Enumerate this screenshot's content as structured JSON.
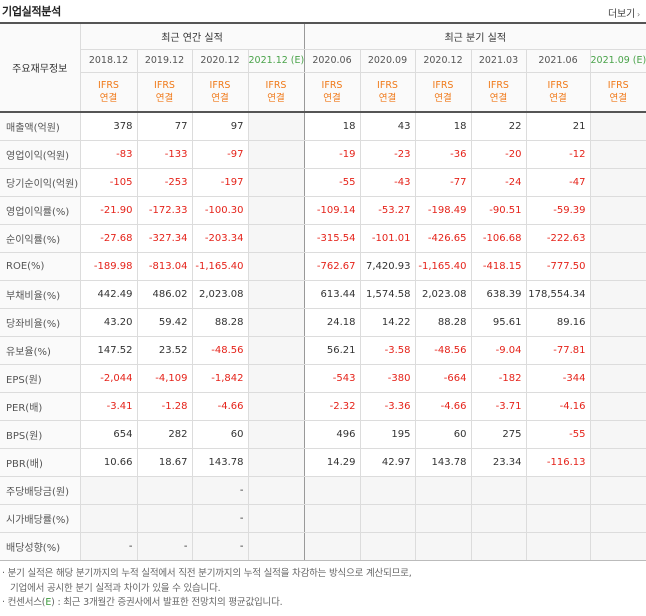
{
  "section": {
    "title": "기업실적분석",
    "more_label": "더보기"
  },
  "header": {
    "row_label": "주요재무정보",
    "annual_group": "최근 연간 실적",
    "quarterly_group": "최근 분기 실적",
    "annual_periods": [
      "2018.12",
      "2019.12",
      "2020.12",
      "2021.12 (E)"
    ],
    "quarterly_periods": [
      "2020.06",
      "2020.09",
      "2020.12",
      "2021.03",
      "2021.06",
      "2021.09 (E)"
    ],
    "ifrs_line1": "IFRS",
    "ifrs_line2": "연결"
  },
  "rows": [
    {
      "label": "매출액(억원)",
      "annual": [
        "378",
        "77",
        "97",
        ""
      ],
      "quarterly": [
        "18",
        "43",
        "18",
        "22",
        "21",
        ""
      ]
    },
    {
      "label": "영업이익(억원)",
      "annual": [
        "-83",
        "-133",
        "-97",
        ""
      ],
      "quarterly": [
        "-19",
        "-23",
        "-36",
        "-20",
        "-12",
        ""
      ]
    },
    {
      "label": "당기순이익(억원)",
      "annual": [
        "-105",
        "-253",
        "-197",
        ""
      ],
      "quarterly": [
        "-55",
        "-43",
        "-77",
        "-24",
        "-47",
        ""
      ]
    },
    {
      "label": "영업이익률(%)",
      "annual": [
        "-21.90",
        "-172.33",
        "-100.30",
        ""
      ],
      "quarterly": [
        "-109.14",
        "-53.27",
        "-198.49",
        "-90.51",
        "-59.39",
        ""
      ]
    },
    {
      "label": "순이익률(%)",
      "annual": [
        "-27.68",
        "-327.34",
        "-203.34",
        ""
      ],
      "quarterly": [
        "-315.54",
        "-101.01",
        "-426.65",
        "-106.68",
        "-222.63",
        ""
      ]
    },
    {
      "label": "ROE(%)",
      "annual": [
        "-189.98",
        "-813.04",
        "-1,165.40",
        ""
      ],
      "quarterly": [
        "-762.67",
        "7,420.93",
        "-1,165.40",
        "-418.15",
        "-777.50",
        ""
      ]
    },
    {
      "label": "부채비율(%)",
      "annual": [
        "442.49",
        "486.02",
        "2,023.08",
        ""
      ],
      "quarterly": [
        "613.44",
        "1,574.58",
        "2,023.08",
        "638.39",
        "178,554.34",
        ""
      ]
    },
    {
      "label": "당좌비율(%)",
      "annual": [
        "43.20",
        "59.42",
        "88.28",
        ""
      ],
      "quarterly": [
        "24.18",
        "14.22",
        "88.28",
        "95.61",
        "89.16",
        ""
      ]
    },
    {
      "label": "유보율(%)",
      "annual": [
        "147.52",
        "23.52",
        "-48.56",
        ""
      ],
      "quarterly": [
        "56.21",
        "-3.58",
        "-48.56",
        "-9.04",
        "-77.81",
        ""
      ]
    },
    {
      "label": "EPS(원)",
      "annual": [
        "-2,044",
        "-4,109",
        "-1,842",
        ""
      ],
      "quarterly": [
        "-543",
        "-380",
        "-664",
        "-182",
        "-344",
        ""
      ]
    },
    {
      "label": "PER(배)",
      "annual": [
        "-3.41",
        "-1.28",
        "-4.66",
        ""
      ],
      "quarterly": [
        "-2.32",
        "-3.36",
        "-4.66",
        "-3.71",
        "-4.16",
        ""
      ]
    },
    {
      "label": "BPS(원)",
      "annual": [
        "654",
        "282",
        "60",
        ""
      ],
      "quarterly": [
        "496",
        "195",
        "60",
        "275",
        "-55",
        ""
      ]
    },
    {
      "label": "PBR(배)",
      "annual": [
        "10.66",
        "18.67",
        "143.78",
        ""
      ],
      "quarterly": [
        "14.29",
        "42.97",
        "143.78",
        "23.34",
        "-116.13",
        ""
      ]
    },
    {
      "label": "주당배당금(원)",
      "annual": [
        "",
        "",
        "-",
        ""
      ],
      "quarterly": [
        "",
        "",
        "",
        "",
        "",
        ""
      ]
    },
    {
      "label": "시가배당률(%)",
      "annual": [
        "",
        "",
        "-",
        ""
      ],
      "quarterly": [
        "",
        "",
        "",
        "",
        "",
        ""
      ]
    },
    {
      "label": "배당성향(%)",
      "annual": [
        "-",
        "-",
        "-",
        ""
      ],
      "quarterly": [
        "",
        "",
        "",
        "",
        "",
        ""
      ]
    }
  ],
  "notes": {
    "line1": "분기 실적은 해당 분기까지의 누적 실적에서 직전 분기까지의 누적 실적을 차감하는 방식으로 계산되므로,",
    "line2": "기업에서 공시한 분기 실적과 차이가 있을 수 있습니다.",
    "line3_prefix": "컨센서스(",
    "line3_e": "E",
    "line3_suffix": ") : 최근 3개월간 증권사에서 발표한 전망치의 평균값입니다."
  },
  "colors": {
    "negative": "#e5231a",
    "ifrs": "#f07a1a",
    "estimate": "#4aa34a"
  }
}
